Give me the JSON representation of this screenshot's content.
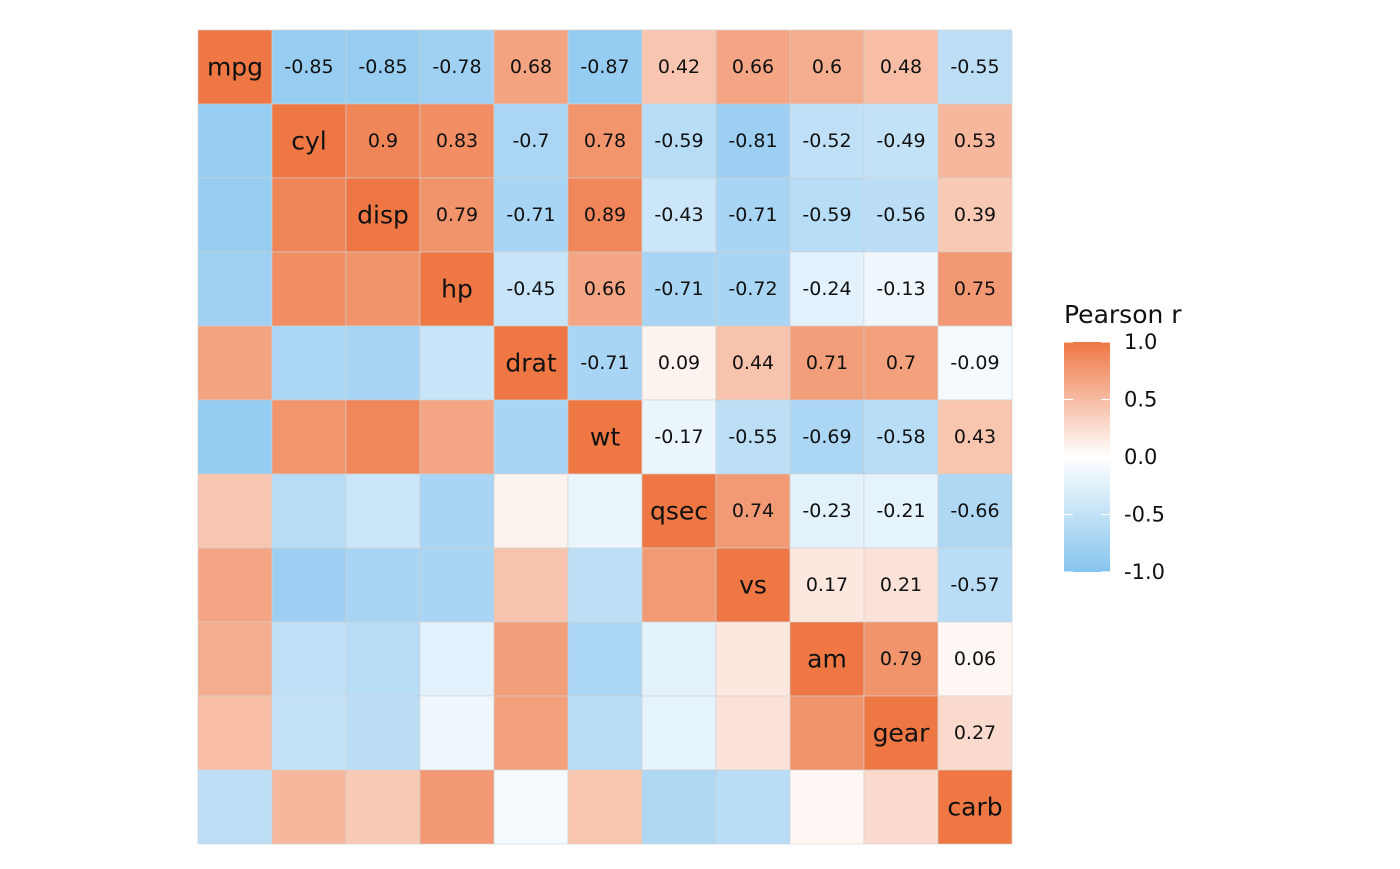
{
  "chart_data": {
    "type": "heatmap",
    "variables": [
      "mpg",
      "cyl",
      "disp",
      "hp",
      "drat",
      "wt",
      "qsec",
      "vs",
      "am",
      "gear",
      "carb"
    ],
    "matrix": [
      [
        1.0,
        -0.85,
        -0.85,
        -0.78,
        0.68,
        -0.87,
        0.42,
        0.66,
        0.6,
        0.48,
        -0.55
      ],
      [
        -0.85,
        1.0,
        0.9,
        0.83,
        -0.7,
        0.78,
        -0.59,
        -0.81,
        -0.52,
        -0.49,
        0.53
      ],
      [
        -0.85,
        0.9,
        1.0,
        0.79,
        -0.71,
        0.89,
        -0.43,
        -0.71,
        -0.59,
        -0.56,
        0.39
      ],
      [
        -0.78,
        0.83,
        0.79,
        1.0,
        -0.45,
        0.66,
        -0.71,
        -0.72,
        -0.24,
        -0.13,
        0.75
      ],
      [
        0.68,
        -0.7,
        -0.71,
        -0.45,
        1.0,
        -0.71,
        0.09,
        0.44,
        0.71,
        0.7,
        -0.09
      ],
      [
        -0.87,
        0.78,
        0.89,
        0.66,
        -0.71,
        1.0,
        -0.17,
        -0.55,
        -0.69,
        -0.58,
        0.43
      ],
      [
        0.42,
        -0.59,
        -0.43,
        -0.71,
        0.09,
        -0.17,
        1.0,
        0.74,
        -0.23,
        -0.21,
        -0.66
      ],
      [
        0.66,
        -0.81,
        -0.71,
        -0.72,
        0.44,
        -0.55,
        0.74,
        1.0,
        0.17,
        0.21,
        -0.57
      ],
      [
        0.6,
        -0.52,
        -0.59,
        -0.24,
        0.71,
        -0.69,
        -0.23,
        0.17,
        1.0,
        0.79,
        0.06
      ],
      [
        0.48,
        -0.49,
        -0.56,
        -0.13,
        0.7,
        -0.58,
        -0.21,
        0.21,
        0.79,
        1.0,
        0.27
      ],
      [
        -0.55,
        0.53,
        0.39,
        0.75,
        -0.09,
        0.43,
        -0.66,
        -0.57,
        0.06,
        0.27,
        1.0
      ]
    ],
    "value_labels": "upper-triangle",
    "diagonal_labels": "variable names",
    "legend": {
      "title": "Pearson r",
      "position": "right",
      "ticks": [
        "1.0",
        "0.5",
        "0.0",
        "-0.5",
        "-1.0"
      ],
      "tick_values": [
        1.0,
        0.5,
        0.0,
        -0.5,
        -1.0
      ],
      "range": [
        -1.0,
        1.0
      ]
    },
    "colors": {
      "negative": "#85c4ef",
      "zero": "#ffffff",
      "positive": "#ee7744",
      "grid": "#d0d0d0"
    }
  }
}
